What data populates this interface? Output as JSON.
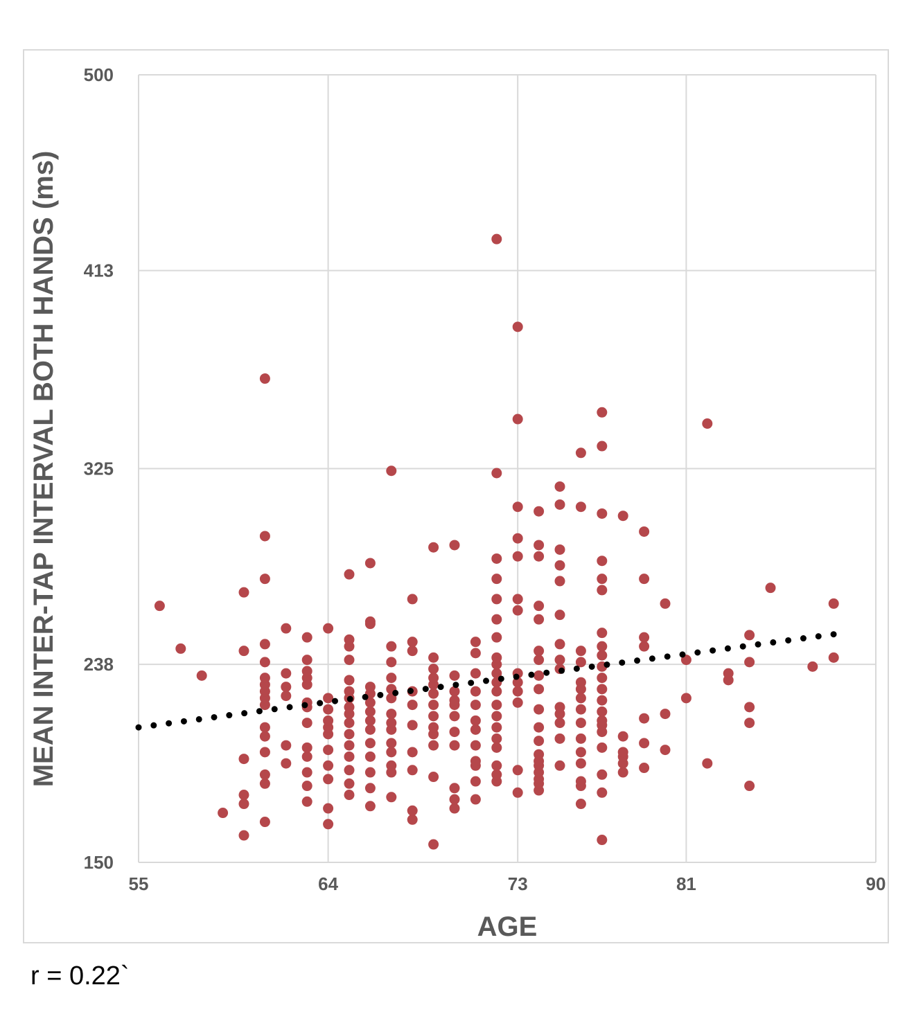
{
  "chart_data": {
    "type": "scatter",
    "title": "",
    "xlabel": "AGE",
    "ylabel": "MEAN INTER-TAP INTERVAL BOTH HANDS (ms)",
    "xlim": [
      55,
      90
    ],
    "ylim": [
      150,
      500
    ],
    "xticks": [
      "55",
      "64",
      "73",
      "81",
      "90"
    ],
    "yticks": [
      "500",
      "413",
      "325",
      "238",
      "150"
    ],
    "grid": true,
    "legend": "none",
    "colors": {
      "points": "#b5474b",
      "trendline": "#000000",
      "grid": "#d9d9d9",
      "text": "#595959"
    },
    "trendline": {
      "style": "dotted",
      "x": [
        55,
        88.5
      ],
      "y": [
        210,
        252
      ]
    },
    "points": [
      [
        56,
        264
      ],
      [
        57,
        245
      ],
      [
        58,
        233
      ],
      [
        59,
        172
      ],
      [
        60,
        162
      ],
      [
        60,
        176
      ],
      [
        60,
        180
      ],
      [
        60,
        196
      ],
      [
        60,
        244
      ],
      [
        60,
        270
      ],
      [
        61,
        168
      ],
      [
        61,
        185
      ],
      [
        61,
        189
      ],
      [
        61,
        199
      ],
      [
        61,
        206
      ],
      [
        61,
        210
      ],
      [
        61,
        220
      ],
      [
        61,
        223
      ],
      [
        61,
        226
      ],
      [
        61,
        229
      ],
      [
        61,
        232
      ],
      [
        61,
        239
      ],
      [
        61,
        247
      ],
      [
        61,
        276
      ],
      [
        61,
        295
      ],
      [
        61,
        365
      ],
      [
        62,
        194
      ],
      [
        62,
        202
      ],
      [
        62,
        224
      ],
      [
        62,
        228
      ],
      [
        62,
        234
      ],
      [
        62,
        254
      ],
      [
        63,
        177
      ],
      [
        63,
        184
      ],
      [
        63,
        190
      ],
      [
        63,
        197
      ],
      [
        63,
        201
      ],
      [
        63,
        212
      ],
      [
        63,
        219
      ],
      [
        63,
        221
      ],
      [
        63,
        229
      ],
      [
        63,
        232
      ],
      [
        63,
        235
      ],
      [
        63,
        240
      ],
      [
        63,
        250
      ],
      [
        64,
        167
      ],
      [
        64,
        174
      ],
      [
        64,
        187
      ],
      [
        64,
        193
      ],
      [
        64,
        200
      ],
      [
        64,
        207
      ],
      [
        64,
        210
      ],
      [
        64,
        213
      ],
      [
        64,
        218
      ],
      [
        64,
        223
      ],
      [
        64,
        254
      ],
      [
        65,
        180
      ],
      [
        65,
        185
      ],
      [
        65,
        191
      ],
      [
        65,
        197
      ],
      [
        65,
        202
      ],
      [
        65,
        207
      ],
      [
        65,
        212
      ],
      [
        65,
        216
      ],
      [
        65,
        219
      ],
      [
        65,
        223
      ],
      [
        65,
        226
      ],
      [
        65,
        231
      ],
      [
        65,
        240
      ],
      [
        65,
        246
      ],
      [
        65,
        249
      ],
      [
        65,
        278
      ],
      [
        66,
        175
      ],
      [
        66,
        183
      ],
      [
        66,
        190
      ],
      [
        66,
        197
      ],
      [
        66,
        203
      ],
      [
        66,
        209
      ],
      [
        66,
        213
      ],
      [
        66,
        217
      ],
      [
        66,
        221
      ],
      [
        66,
        225
      ],
      [
        66,
        228
      ],
      [
        66,
        256
      ],
      [
        66,
        257
      ],
      [
        66,
        283
      ],
      [
        67,
        179
      ],
      [
        67,
        190
      ],
      [
        67,
        193
      ],
      [
        67,
        199
      ],
      [
        67,
        203
      ],
      [
        67,
        209
      ],
      [
        67,
        212
      ],
      [
        67,
        216
      ],
      [
        67,
        223
      ],
      [
        67,
        227
      ],
      [
        67,
        232
      ],
      [
        67,
        239
      ],
      [
        67,
        246
      ],
      [
        67,
        324
      ],
      [
        68,
        169
      ],
      [
        68,
        173
      ],
      [
        68,
        191
      ],
      [
        68,
        199
      ],
      [
        68,
        211
      ],
      [
        68,
        220
      ],
      [
        68,
        226
      ],
      [
        68,
        244
      ],
      [
        68,
        248
      ],
      [
        68,
        267
      ],
      [
        69,
        158
      ],
      [
        69,
        188
      ],
      [
        69,
        202
      ],
      [
        69,
        207
      ],
      [
        69,
        210
      ],
      [
        69,
        215
      ],
      [
        69,
        220
      ],
      [
        69,
        225
      ],
      [
        69,
        229
      ],
      [
        69,
        232
      ],
      [
        69,
        236
      ],
      [
        69,
        241
      ],
      [
        69,
        290
      ],
      [
        70,
        174
      ],
      [
        70,
        178
      ],
      [
        70,
        183
      ],
      [
        70,
        202
      ],
      [
        70,
        208
      ],
      [
        70,
        215
      ],
      [
        70,
        220
      ],
      [
        70,
        222
      ],
      [
        70,
        226
      ],
      [
        70,
        233
      ],
      [
        70,
        291
      ],
      [
        71,
        178
      ],
      [
        71,
        186
      ],
      [
        71,
        193
      ],
      [
        71,
        195
      ],
      [
        71,
        202
      ],
      [
        71,
        209
      ],
      [
        71,
        213
      ],
      [
        71,
        220
      ],
      [
        71,
        226
      ],
      [
        71,
        234
      ],
      [
        71,
        243
      ],
      [
        71,
        248
      ],
      [
        72,
        186
      ],
      [
        72,
        189
      ],
      [
        72,
        193
      ],
      [
        72,
        201
      ],
      [
        72,
        205
      ],
      [
        72,
        210
      ],
      [
        72,
        215
      ],
      [
        72,
        220
      ],
      [
        72,
        226
      ],
      [
        72,
        230
      ],
      [
        72,
        234
      ],
      [
        72,
        238
      ],
      [
        72,
        241
      ],
      [
        72,
        250
      ],
      [
        72,
        258
      ],
      [
        72,
        267
      ],
      [
        72,
        276
      ],
      [
        72,
        285
      ],
      [
        72,
        323
      ],
      [
        72,
        427
      ],
      [
        73,
        181
      ],
      [
        73,
        191
      ],
      [
        73,
        221
      ],
      [
        73,
        226
      ],
      [
        73,
        230
      ],
      [
        73,
        234
      ],
      [
        73,
        262
      ],
      [
        73,
        267
      ],
      [
        73,
        286
      ],
      [
        73,
        294
      ],
      [
        73,
        308
      ],
      [
        73,
        347
      ],
      [
        73,
        388
      ],
      [
        74,
        182
      ],
      [
        74,
        185
      ],
      [
        74,
        187
      ],
      [
        74,
        190
      ],
      [
        74,
        193
      ],
      [
        74,
        195
      ],
      [
        74,
        198
      ],
      [
        74,
        204
      ],
      [
        74,
        210
      ],
      [
        74,
        218
      ],
      [
        74,
        227
      ],
      [
        74,
        233
      ],
      [
        74,
        240
      ],
      [
        74,
        244
      ],
      [
        74,
        258
      ],
      [
        74,
        264
      ],
      [
        74,
        286
      ],
      [
        74,
        291
      ],
      [
        74,
        306
      ],
      [
        75,
        193
      ],
      [
        75,
        205
      ],
      [
        75,
        212
      ],
      [
        75,
        216
      ],
      [
        75,
        219
      ],
      [
        75,
        236
      ],
      [
        75,
        240
      ],
      [
        75,
        247
      ],
      [
        75,
        260
      ],
      [
        75,
        275
      ],
      [
        75,
        282
      ],
      [
        75,
        289
      ],
      [
        75,
        309
      ],
      [
        75,
        317
      ],
      [
        76,
        176
      ],
      [
        76,
        184
      ],
      [
        76,
        186
      ],
      [
        76,
        194
      ],
      [
        76,
        199
      ],
      [
        76,
        205
      ],
      [
        76,
        212
      ],
      [
        76,
        218
      ],
      [
        76,
        223
      ],
      [
        76,
        227
      ],
      [
        76,
        230
      ],
      [
        76,
        239
      ],
      [
        76,
        244
      ],
      [
        76,
        308
      ],
      [
        76,
        332
      ],
      [
        77,
        160
      ],
      [
        77,
        181
      ],
      [
        77,
        189
      ],
      [
        77,
        201
      ],
      [
        77,
        208
      ],
      [
        77,
        211
      ],
      [
        77,
        213
      ],
      [
        77,
        217
      ],
      [
        77,
        222
      ],
      [
        77,
        227
      ],
      [
        77,
        232
      ],
      [
        77,
        237
      ],
      [
        77,
        242
      ],
      [
        77,
        246
      ],
      [
        77,
        252
      ],
      [
        77,
        271
      ],
      [
        77,
        276
      ],
      [
        77,
        284
      ],
      [
        77,
        305
      ],
      [
        77,
        335
      ],
      [
        77,
        350
      ],
      [
        78,
        190
      ],
      [
        78,
        194
      ],
      [
        78,
        197
      ],
      [
        78,
        199
      ],
      [
        78,
        206
      ],
      [
        78,
        304
      ],
      [
        79,
        192
      ],
      [
        79,
        203
      ],
      [
        79,
        214
      ],
      [
        79,
        246
      ],
      [
        79,
        250
      ],
      [
        79,
        276
      ],
      [
        79,
        297
      ],
      [
        80,
        200
      ],
      [
        80,
        216
      ],
      [
        80,
        265
      ],
      [
        81,
        223
      ],
      [
        81,
        240
      ],
      [
        82,
        194
      ],
      [
        82,
        345
      ],
      [
        83,
        231
      ],
      [
        83,
        234
      ],
      [
        84,
        184
      ],
      [
        84,
        212
      ],
      [
        84,
        219
      ],
      [
        84,
        239
      ],
      [
        84,
        251
      ],
      [
        85,
        272
      ],
      [
        87,
        237
      ],
      [
        88,
        241
      ],
      [
        88,
        265
      ]
    ]
  },
  "footnote": "r = 0.22`"
}
